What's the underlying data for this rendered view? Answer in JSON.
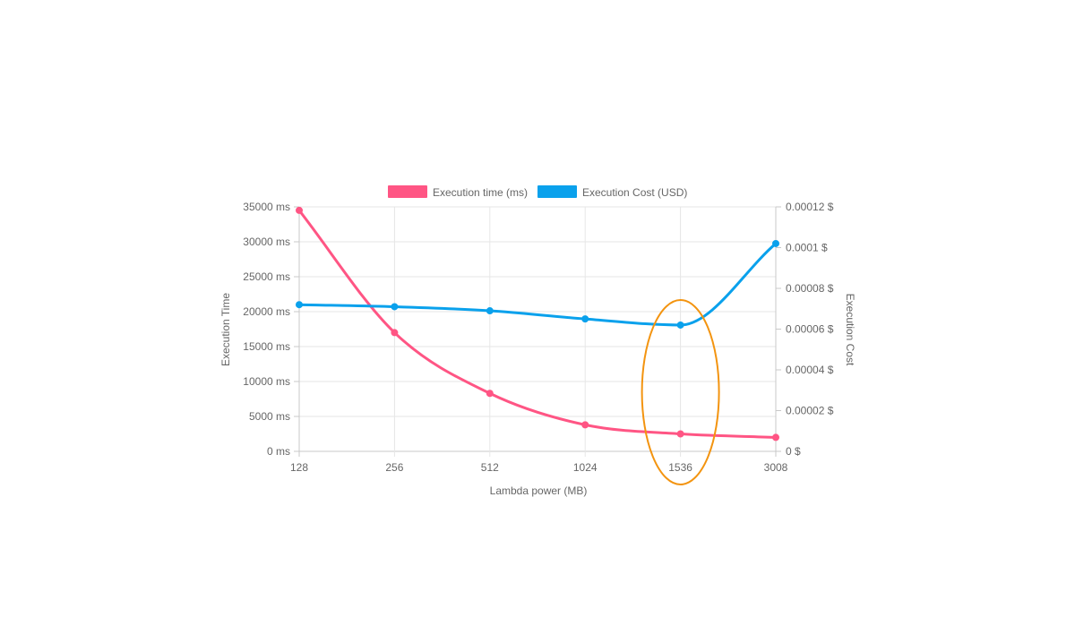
{
  "chart_data": {
    "type": "line",
    "categories": [
      "128",
      "256",
      "512",
      "1024",
      "1536",
      "3008"
    ],
    "series": [
      {
        "name": "Execution time (ms)",
        "axis": "left",
        "color": "#ff5584",
        "values": [
          34500,
          17000,
          8300,
          3800,
          2500,
          2000
        ]
      },
      {
        "name": "Execution Cost (USD)",
        "axis": "right",
        "color": "#0aa1ec",
        "values": [
          7.2e-05,
          7.1e-05,
          6.9e-05,
          6.5e-05,
          6.2e-05,
          0.000102
        ]
      }
    ],
    "xlabel": "Lambda power (MB)",
    "ylabel_left": "Execution Time",
    "ylabel_right": "Execution Cost",
    "ylim_left": [
      0,
      35000
    ],
    "ylim_right": [
      0,
      0.00012
    ],
    "y_ticks_left": [
      "0 ms",
      "5000 ms",
      "10000 ms",
      "15000 ms",
      "20000 ms",
      "25000 ms",
      "30000 ms",
      "35000 ms"
    ],
    "y_ticks_right": [
      "0 $",
      "0.00002 $",
      "0.00004 $",
      "0.00006 $",
      "0.00008 $",
      "0.0001 $",
      "0.00012 $"
    ],
    "grid": true,
    "legend_position": "top",
    "highlight": {
      "category": "1536",
      "shape": "ellipse",
      "color": "#f39410"
    }
  }
}
